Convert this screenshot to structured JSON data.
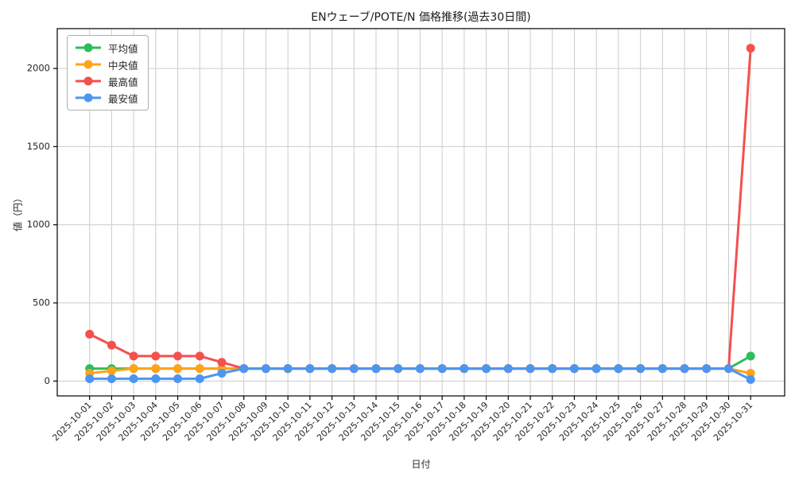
{
  "figure": {
    "kind": "line-chart-screenshot"
  },
  "chart_data": {
    "type": "line",
    "title": "ENウェーブ/POTE/N 価格推移(過去30日間)",
    "xlabel": "日付",
    "ylabel": "値（円）",
    "x": [
      "2025-10-01",
      "2025-10-02",
      "2025-10-03",
      "2025-10-04",
      "2025-10-05",
      "2025-10-06",
      "2025-10-07",
      "2025-10-08",
      "2025-10-09",
      "2025-10-10",
      "2025-10-11",
      "2025-10-12",
      "2025-10-13",
      "2025-10-14",
      "2025-10-15",
      "2025-10-16",
      "2025-10-17",
      "2025-10-18",
      "2025-10-19",
      "2025-10-20",
      "2025-10-21",
      "2025-10-22",
      "2025-10-23",
      "2025-10-24",
      "2025-10-25",
      "2025-10-26",
      "2025-10-27",
      "2025-10-28",
      "2025-10-29",
      "2025-10-30",
      "2025-10-31"
    ],
    "yticks": [
      0,
      500,
      1000,
      1500,
      2000
    ],
    "ylim": [
      -95,
      2255
    ],
    "grid": true,
    "grid_color": "#cccccc",
    "frame_color": "#000000",
    "legend_position": "upper-left",
    "series": [
      {
        "name": "平均値",
        "color": "#2ebd59",
        "values": [
          80,
          80,
          80,
          80,
          80,
          80,
          80,
          80,
          80,
          80,
          80,
          80,
          80,
          80,
          80,
          80,
          80,
          80,
          80,
          80,
          80,
          80,
          80,
          80,
          80,
          80,
          80,
          80,
          80,
          80,
          160
        ]
      },
      {
        "name": "中央値",
        "color": "#ffa31a",
        "values": [
          50,
          65,
          80,
          80,
          80,
          80,
          80,
          80,
          80,
          80,
          80,
          80,
          80,
          80,
          80,
          80,
          80,
          80,
          80,
          80,
          80,
          80,
          80,
          80,
          80,
          80,
          80,
          80,
          80,
          80,
          50
        ]
      },
      {
        "name": "最高値",
        "color": "#f4504e",
        "values": [
          300,
          230,
          160,
          160,
          160,
          160,
          120,
          80,
          80,
          80,
          80,
          80,
          80,
          80,
          80,
          80,
          80,
          80,
          80,
          80,
          80,
          80,
          80,
          80,
          80,
          80,
          80,
          80,
          80,
          80,
          2130
        ]
      },
      {
        "name": "最安値",
        "color": "#4c96f1",
        "values": [
          15,
          15,
          15,
          15,
          15,
          15,
          50,
          80,
          80,
          80,
          80,
          80,
          80,
          80,
          80,
          80,
          80,
          80,
          80,
          80,
          80,
          80,
          80,
          80,
          80,
          80,
          80,
          80,
          80,
          80,
          10
        ]
      }
    ]
  }
}
